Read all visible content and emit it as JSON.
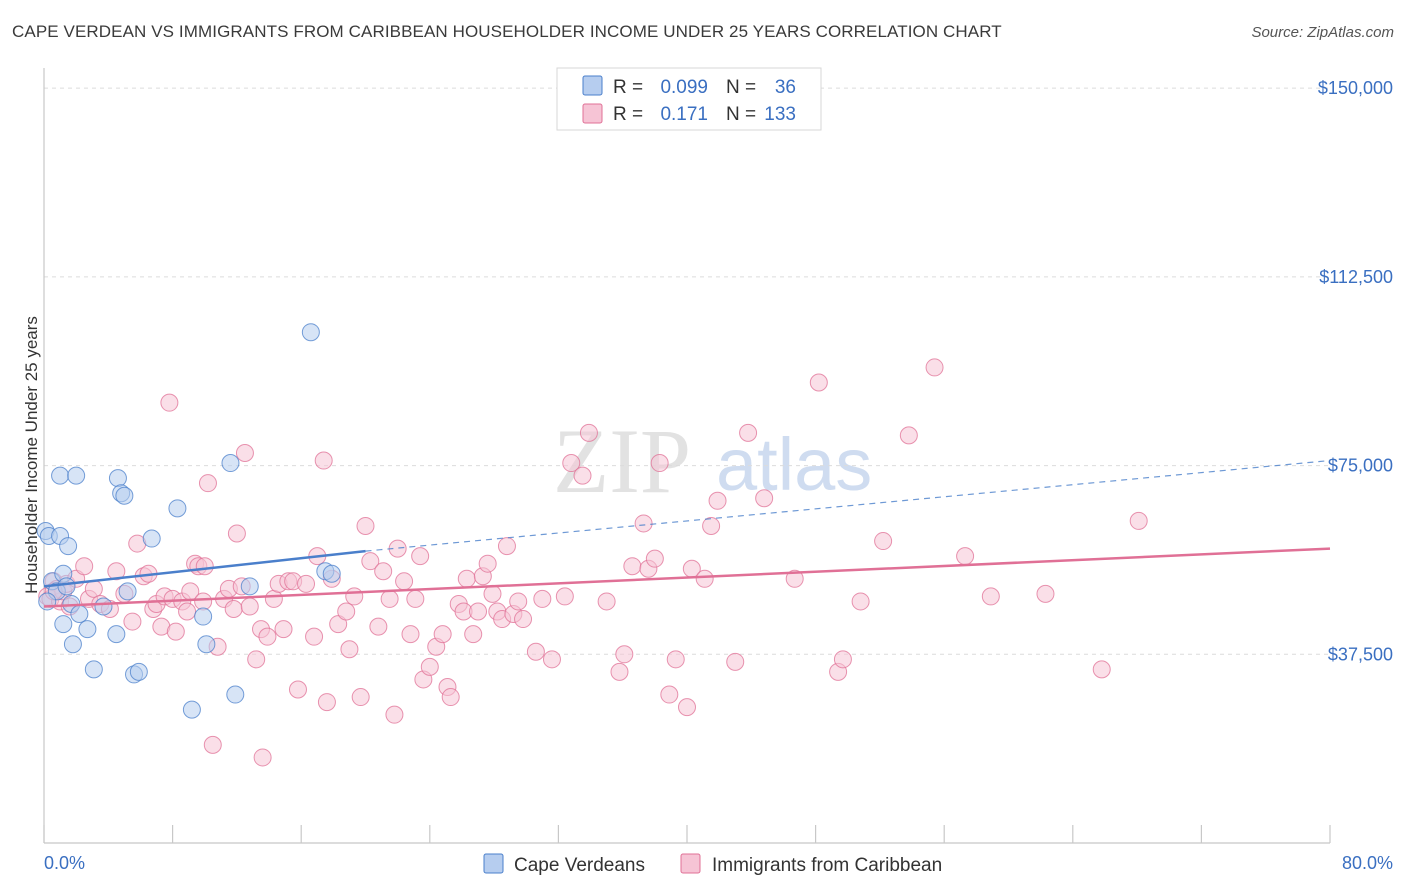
{
  "title": "CAPE VERDEAN VS IMMIGRANTS FROM CARIBBEAN HOUSEHOLDER INCOME UNDER 25 YEARS CORRELATION CHART",
  "source": "Source: ZipAtlas.com",
  "watermark": {
    "zip": "ZIP",
    "atlas": "atlas"
  },
  "legend": {
    "r_label": "R =",
    "n_label": "N =",
    "rows": [
      {
        "name": "Cape Verdeans",
        "r": "0.099",
        "n": "36",
        "color": "#4a7fcb",
        "fill": "#b6cdef"
      },
      {
        "name": "Immigrants from Caribbean",
        "r": "0.171",
        "n": "133",
        "color": "#e07096",
        "fill": "#f6c4d5"
      }
    ]
  },
  "chart_data": {
    "type": "scatter",
    "xlabel": "",
    "ylabel": "Householder Income Under 25 years",
    "xlim": [
      0,
      80
    ],
    "ylim": [
      0,
      154000
    ],
    "x_tick_labels": [
      "0.0%",
      "80.0%"
    ],
    "y_ticks": [
      {
        "value": 37500,
        "label": "$37,500"
      },
      {
        "value": 75000,
        "label": "$75,000"
      },
      {
        "value": 112500,
        "label": "$112,500"
      },
      {
        "value": 150000,
        "label": "$150,000"
      }
    ],
    "series": [
      {
        "name": "Cape Verdeans",
        "color": "#4a7fcb",
        "trend": {
          "x0": 0,
          "y0": 51000,
          "x1": 20,
          "y1": 58000,
          "x_dash_end": 80,
          "y_dash_end": 76000
        },
        "points": [
          [
            0.1,
            62000
          ],
          [
            0.3,
            61000
          ],
          [
            0.5,
            52000
          ],
          [
            0.8,
            50000
          ],
          [
            1.0,
            61000
          ],
          [
            1.0,
            73000
          ],
          [
            1.2,
            53500
          ],
          [
            1.2,
            43500
          ],
          [
            1.4,
            51000
          ],
          [
            1.5,
            59000
          ],
          [
            1.7,
            47500
          ],
          [
            1.8,
            39500
          ],
          [
            2.0,
            73000
          ],
          [
            2.2,
            45500
          ],
          [
            2.7,
            42500
          ],
          [
            3.1,
            34500
          ],
          [
            3.7,
            47000
          ],
          [
            4.5,
            41500
          ],
          [
            4.6,
            72500
          ],
          [
            4.8,
            69500
          ],
          [
            5.0,
            69000
          ],
          [
            5.2,
            50000
          ],
          [
            5.6,
            33500
          ],
          [
            5.9,
            34000
          ],
          [
            6.7,
            60500
          ],
          [
            8.3,
            66500
          ],
          [
            9.2,
            26500
          ],
          [
            9.9,
            45000
          ],
          [
            10.1,
            39500
          ],
          [
            11.6,
            75500
          ],
          [
            11.9,
            29500
          ],
          [
            12.8,
            51000
          ],
          [
            16.6,
            101500
          ],
          [
            17.5,
            54000
          ],
          [
            17.9,
            53500
          ],
          [
            0.2,
            48000
          ]
        ]
      },
      {
        "name": "Immigrants from Caribbean",
        "color": "#e07096",
        "trend": {
          "x0": 0,
          "y0": 47000,
          "x1": 80,
          "y1": 58500
        },
        "points": [
          [
            0.2,
            49000
          ],
          [
            0.4,
            48500
          ],
          [
            0.6,
            52000
          ],
          [
            0.8,
            50500
          ],
          [
            1.0,
            48000
          ],
          [
            1.2,
            50000
          ],
          [
            1.4,
            51500
          ],
          [
            1.6,
            47000
          ],
          [
            2.0,
            52500
          ],
          [
            2.5,
            55000
          ],
          [
            2.8,
            48500
          ],
          [
            3.1,
            50500
          ],
          [
            3.5,
            47500
          ],
          [
            4.1,
            46500
          ],
          [
            4.5,
            54000
          ],
          [
            5.0,
            49500
          ],
          [
            5.5,
            44000
          ],
          [
            5.8,
            59500
          ],
          [
            6.2,
            53000
          ],
          [
            6.5,
            53500
          ],
          [
            6.8,
            46500
          ],
          [
            7.0,
            47500
          ],
          [
            7.3,
            43000
          ],
          [
            7.5,
            49000
          ],
          [
            7.8,
            87500
          ],
          [
            8.0,
            48500
          ],
          [
            8.2,
            42000
          ],
          [
            8.6,
            48000
          ],
          [
            8.9,
            46000
          ],
          [
            9.1,
            50000
          ],
          [
            9.4,
            55500
          ],
          [
            9.6,
            55000
          ],
          [
            9.9,
            48000
          ],
          [
            10.0,
            55000
          ],
          [
            10.2,
            71500
          ],
          [
            10.5,
            19500
          ],
          [
            10.8,
            39000
          ],
          [
            11.2,
            48500
          ],
          [
            11.5,
            50500
          ],
          [
            11.8,
            46500
          ],
          [
            12.0,
            61500
          ],
          [
            12.3,
            51000
          ],
          [
            12.5,
            77500
          ],
          [
            12.8,
            47000
          ],
          [
            13.2,
            36500
          ],
          [
            13.5,
            42500
          ],
          [
            13.6,
            17000
          ],
          [
            13.9,
            41000
          ],
          [
            14.3,
            48500
          ],
          [
            14.6,
            51500
          ],
          [
            14.9,
            42500
          ],
          [
            15.2,
            52000
          ],
          [
            15.5,
            52000
          ],
          [
            15.8,
            30500
          ],
          [
            16.3,
            51500
          ],
          [
            16.8,
            41000
          ],
          [
            17.0,
            57000
          ],
          [
            17.4,
            76000
          ],
          [
            17.6,
            28000
          ],
          [
            17.9,
            52500
          ],
          [
            18.3,
            43500
          ],
          [
            18.8,
            46000
          ],
          [
            19.0,
            38500
          ],
          [
            19.3,
            49000
          ],
          [
            19.7,
            29000
          ],
          [
            20.0,
            63000
          ],
          [
            20.3,
            56000
          ],
          [
            20.8,
            43000
          ],
          [
            21.1,
            54000
          ],
          [
            21.5,
            48500
          ],
          [
            21.8,
            25500
          ],
          [
            22.0,
            58500
          ],
          [
            22.4,
            52000
          ],
          [
            22.8,
            41500
          ],
          [
            23.1,
            48500
          ],
          [
            23.4,
            57000
          ],
          [
            23.6,
            32500
          ],
          [
            24.0,
            35000
          ],
          [
            24.4,
            39000
          ],
          [
            24.8,
            41500
          ],
          [
            25.1,
            31000
          ],
          [
            25.3,
            29000
          ],
          [
            25.8,
            47500
          ],
          [
            26.1,
            46000
          ],
          [
            26.3,
            52500
          ],
          [
            26.7,
            41500
          ],
          [
            27.0,
            46000
          ],
          [
            27.3,
            53000
          ],
          [
            27.6,
            55500
          ],
          [
            27.9,
            49500
          ],
          [
            28.2,
            46000
          ],
          [
            28.5,
            44500
          ],
          [
            28.8,
            59000
          ],
          [
            29.2,
            45500
          ],
          [
            29.5,
            48000
          ],
          [
            29.8,
            44500
          ],
          [
            30.6,
            38000
          ],
          [
            31.0,
            48500
          ],
          [
            31.6,
            36500
          ],
          [
            32.4,
            49000
          ],
          [
            32.8,
            75500
          ],
          [
            33.5,
            73000
          ],
          [
            33.9,
            81500
          ],
          [
            35.0,
            48000
          ],
          [
            35.8,
            34000
          ],
          [
            36.1,
            37500
          ],
          [
            36.6,
            55000
          ],
          [
            37.3,
            63500
          ],
          [
            37.6,
            54500
          ],
          [
            38.0,
            56500
          ],
          [
            38.3,
            75500
          ],
          [
            38.9,
            29500
          ],
          [
            39.3,
            36500
          ],
          [
            40.0,
            27000
          ],
          [
            40.3,
            54500
          ],
          [
            41.1,
            52500
          ],
          [
            41.5,
            63000
          ],
          [
            41.9,
            68000
          ],
          [
            43.0,
            36000
          ],
          [
            43.8,
            81500
          ],
          [
            44.8,
            68500
          ],
          [
            46.7,
            52500
          ],
          [
            48.2,
            91500
          ],
          [
            49.4,
            34000
          ],
          [
            49.7,
            36500
          ],
          [
            50.8,
            48000
          ],
          [
            52.2,
            60000
          ],
          [
            53.8,
            81000
          ],
          [
            55.4,
            94500
          ],
          [
            57.3,
            57000
          ],
          [
            58.9,
            49000
          ],
          [
            62.3,
            49500
          ],
          [
            65.8,
            34500
          ],
          [
            68.1,
            64000
          ],
          [
            0.6,
            50000
          ]
        ]
      }
    ]
  }
}
